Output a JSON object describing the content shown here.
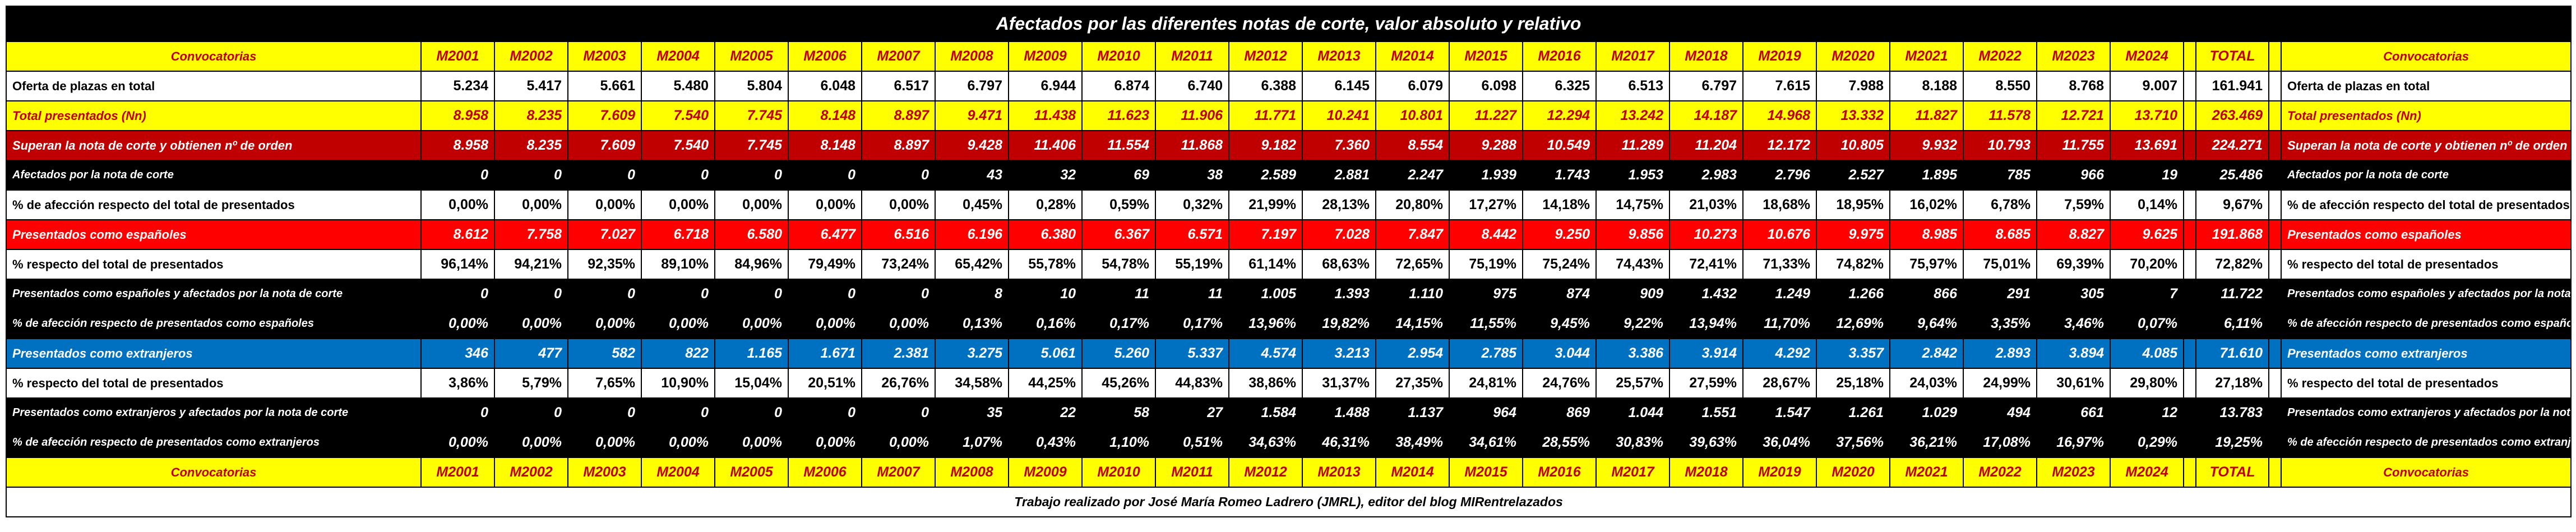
{
  "title": "Afectados por las diferentes notas de corte, valor absoluto y relativo",
  "footer": "Trabajo realizado por José María Romeo Ladrero (JMRL), editor del blog MIRentrelazados",
  "header": {
    "label": "Convocatorias",
    "years": [
      "M2001",
      "M2002",
      "M2003",
      "M2004",
      "M2005",
      "M2006",
      "M2007",
      "M2008",
      "M2009",
      "M2010",
      "M2011",
      "M2012",
      "M2013",
      "M2014",
      "M2015",
      "M2016",
      "M2017",
      "M2018",
      "M2019",
      "M2020",
      "M2021",
      "M2022",
      "M2023",
      "M2024"
    ],
    "total": "TOTAL"
  },
  "rows": [
    {
      "style": "white",
      "label": "Oferta de plazas en total",
      "values": [
        "5.234",
        "5.417",
        "5.661",
        "5.480",
        "5.804",
        "6.048",
        "6.517",
        "6.797",
        "6.944",
        "6.874",
        "6.740",
        "6.388",
        "6.145",
        "6.079",
        "6.098",
        "6.325",
        "6.513",
        "6.797",
        "7.615",
        "7.988",
        "8.188",
        "8.550",
        "8.768",
        "9.007"
      ],
      "total": "161.941"
    },
    {
      "style": "yellow",
      "label": "Total presentados (Nn)",
      "values": [
        "8.958",
        "8.235",
        "7.609",
        "7.540",
        "7.745",
        "8.148",
        "8.897",
        "9.471",
        "11.438",
        "11.623",
        "11.906",
        "11.771",
        "10.241",
        "10.801",
        "11.227",
        "12.294",
        "13.242",
        "14.187",
        "14.968",
        "13.332",
        "11.827",
        "11.578",
        "12.721",
        "13.710"
      ],
      "total": "263.469"
    },
    {
      "style": "dred",
      "label": "Superan la nota de corte y obtienen nº de orden",
      "values": [
        "8.958",
        "8.235",
        "7.609",
        "7.540",
        "7.745",
        "8.148",
        "8.897",
        "9.428",
        "11.406",
        "11.554",
        "11.868",
        "9.182",
        "7.360",
        "8.554",
        "9.288",
        "10.549",
        "11.289",
        "11.204",
        "12.172",
        "10.805",
        "9.932",
        "10.793",
        "11.755",
        "13.691"
      ],
      "total": "224.271"
    },
    {
      "style": "black",
      "label": "Afectados por la nota de corte",
      "values": [
        "0",
        "0",
        "0",
        "0",
        "0",
        "0",
        "0",
        "43",
        "32",
        "69",
        "38",
        "2.589",
        "2.881",
        "2.247",
        "1.939",
        "1.743",
        "1.953",
        "2.983",
        "2.796",
        "2.527",
        "1.895",
        "785",
        "966",
        "19"
      ],
      "total": "25.486"
    },
    {
      "style": "white",
      "label": "% de afección respecto del total de presentados",
      "values": [
        "0,00%",
        "0,00%",
        "0,00%",
        "0,00%",
        "0,00%",
        "0,00%",
        "0,00%",
        "0,45%",
        "0,28%",
        "0,59%",
        "0,32%",
        "21,99%",
        "28,13%",
        "20,80%",
        "17,27%",
        "14,18%",
        "14,75%",
        "21,03%",
        "18,68%",
        "18,95%",
        "16,02%",
        "6,78%",
        "7,59%",
        "0,14%"
      ],
      "total": "9,67%"
    },
    {
      "style": "red",
      "label": "Presentados como españoles",
      "values": [
        "8.612",
        "7.758",
        "7.027",
        "6.718",
        "6.580",
        "6.477",
        "6.516",
        "6.196",
        "6.380",
        "6.367",
        "6.571",
        "7.197",
        "7.028",
        "7.847",
        "8.442",
        "9.250",
        "9.856",
        "10.273",
        "10.676",
        "9.975",
        "8.985",
        "8.685",
        "8.827",
        "9.625"
      ],
      "total": "191.868"
    },
    {
      "style": "white",
      "label": "% respecto del total de presentados",
      "values": [
        "96,14%",
        "94,21%",
        "92,35%",
        "89,10%",
        "84,96%",
        "79,49%",
        "73,24%",
        "65,42%",
        "55,78%",
        "54,78%",
        "55,19%",
        "61,14%",
        "68,63%",
        "72,65%",
        "75,19%",
        "75,24%",
        "74,43%",
        "72,41%",
        "71,33%",
        "74,82%",
        "75,97%",
        "75,01%",
        "69,39%",
        "70,20%"
      ],
      "total": "72,82%"
    },
    {
      "style": "black",
      "label": "Presentados como españoles y afectados por la nota de corte",
      "values": [
        "0",
        "0",
        "0",
        "0",
        "0",
        "0",
        "0",
        "8",
        "10",
        "11",
        "11",
        "1.005",
        "1.393",
        "1.110",
        "975",
        "874",
        "909",
        "1.432",
        "1.249",
        "1.266",
        "866",
        "291",
        "305",
        "7"
      ],
      "total": "11.722"
    },
    {
      "style": "black",
      "label": "% de afección respecto de presentados como españoles",
      "values": [
        "0,00%",
        "0,00%",
        "0,00%",
        "0,00%",
        "0,00%",
        "0,00%",
        "0,00%",
        "0,13%",
        "0,16%",
        "0,17%",
        "0,17%",
        "13,96%",
        "19,82%",
        "14,15%",
        "11,55%",
        "9,45%",
        "9,22%",
        "13,94%",
        "11,70%",
        "12,69%",
        "9,64%",
        "3,35%",
        "3,46%",
        "0,07%"
      ],
      "total": "6,11%"
    },
    {
      "style": "blue",
      "label": "Presentados como extranjeros",
      "values": [
        "346",
        "477",
        "582",
        "822",
        "1.165",
        "1.671",
        "2.381",
        "3.275",
        "5.061",
        "5.260",
        "5.337",
        "4.574",
        "3.213",
        "2.954",
        "2.785",
        "3.044",
        "3.386",
        "3.914",
        "4.292",
        "3.357",
        "2.842",
        "2.893",
        "3.894",
        "4.085"
      ],
      "total": "71.610"
    },
    {
      "style": "white",
      "label": "% respecto del total de presentados",
      "values": [
        "3,86%",
        "5,79%",
        "7,65%",
        "10,90%",
        "15,04%",
        "20,51%",
        "26,76%",
        "34,58%",
        "44,25%",
        "45,26%",
        "44,83%",
        "38,86%",
        "31,37%",
        "27,35%",
        "24,81%",
        "24,76%",
        "25,57%",
        "27,59%",
        "28,67%",
        "25,18%",
        "24,03%",
        "24,99%",
        "30,61%",
        "29,80%"
      ],
      "total": "27,18%"
    },
    {
      "style": "black",
      "label": "Presentados como extranjeros y afectados por la nota de corte",
      "values": [
        "0",
        "0",
        "0",
        "0",
        "0",
        "0",
        "0",
        "35",
        "22",
        "58",
        "27",
        "1.584",
        "1.488",
        "1.137",
        "964",
        "869",
        "1.044",
        "1.551",
        "1.547",
        "1.261",
        "1.029",
        "494",
        "661",
        "12"
      ],
      "total": "13.783"
    },
    {
      "style": "black",
      "label": "% de afección respecto de presentados como extranjeros",
      "values": [
        "0,00%",
        "0,00%",
        "0,00%",
        "0,00%",
        "0,00%",
        "0,00%",
        "0,00%",
        "1,07%",
        "0,43%",
        "1,10%",
        "0,51%",
        "34,63%",
        "46,31%",
        "38,49%",
        "34,61%",
        "28,55%",
        "30,83%",
        "39,63%",
        "36,04%",
        "37,56%",
        "36,21%",
        "17,08%",
        "16,97%",
        "0,29%"
      ],
      "total": "19,25%"
    }
  ],
  "colors": {
    "yellow": "#ffff00",
    "dark_red": "#c00000",
    "red": "#ff0000",
    "blue": "#0070c0",
    "black": "#000000",
    "separator": "#bfbfbf"
  }
}
